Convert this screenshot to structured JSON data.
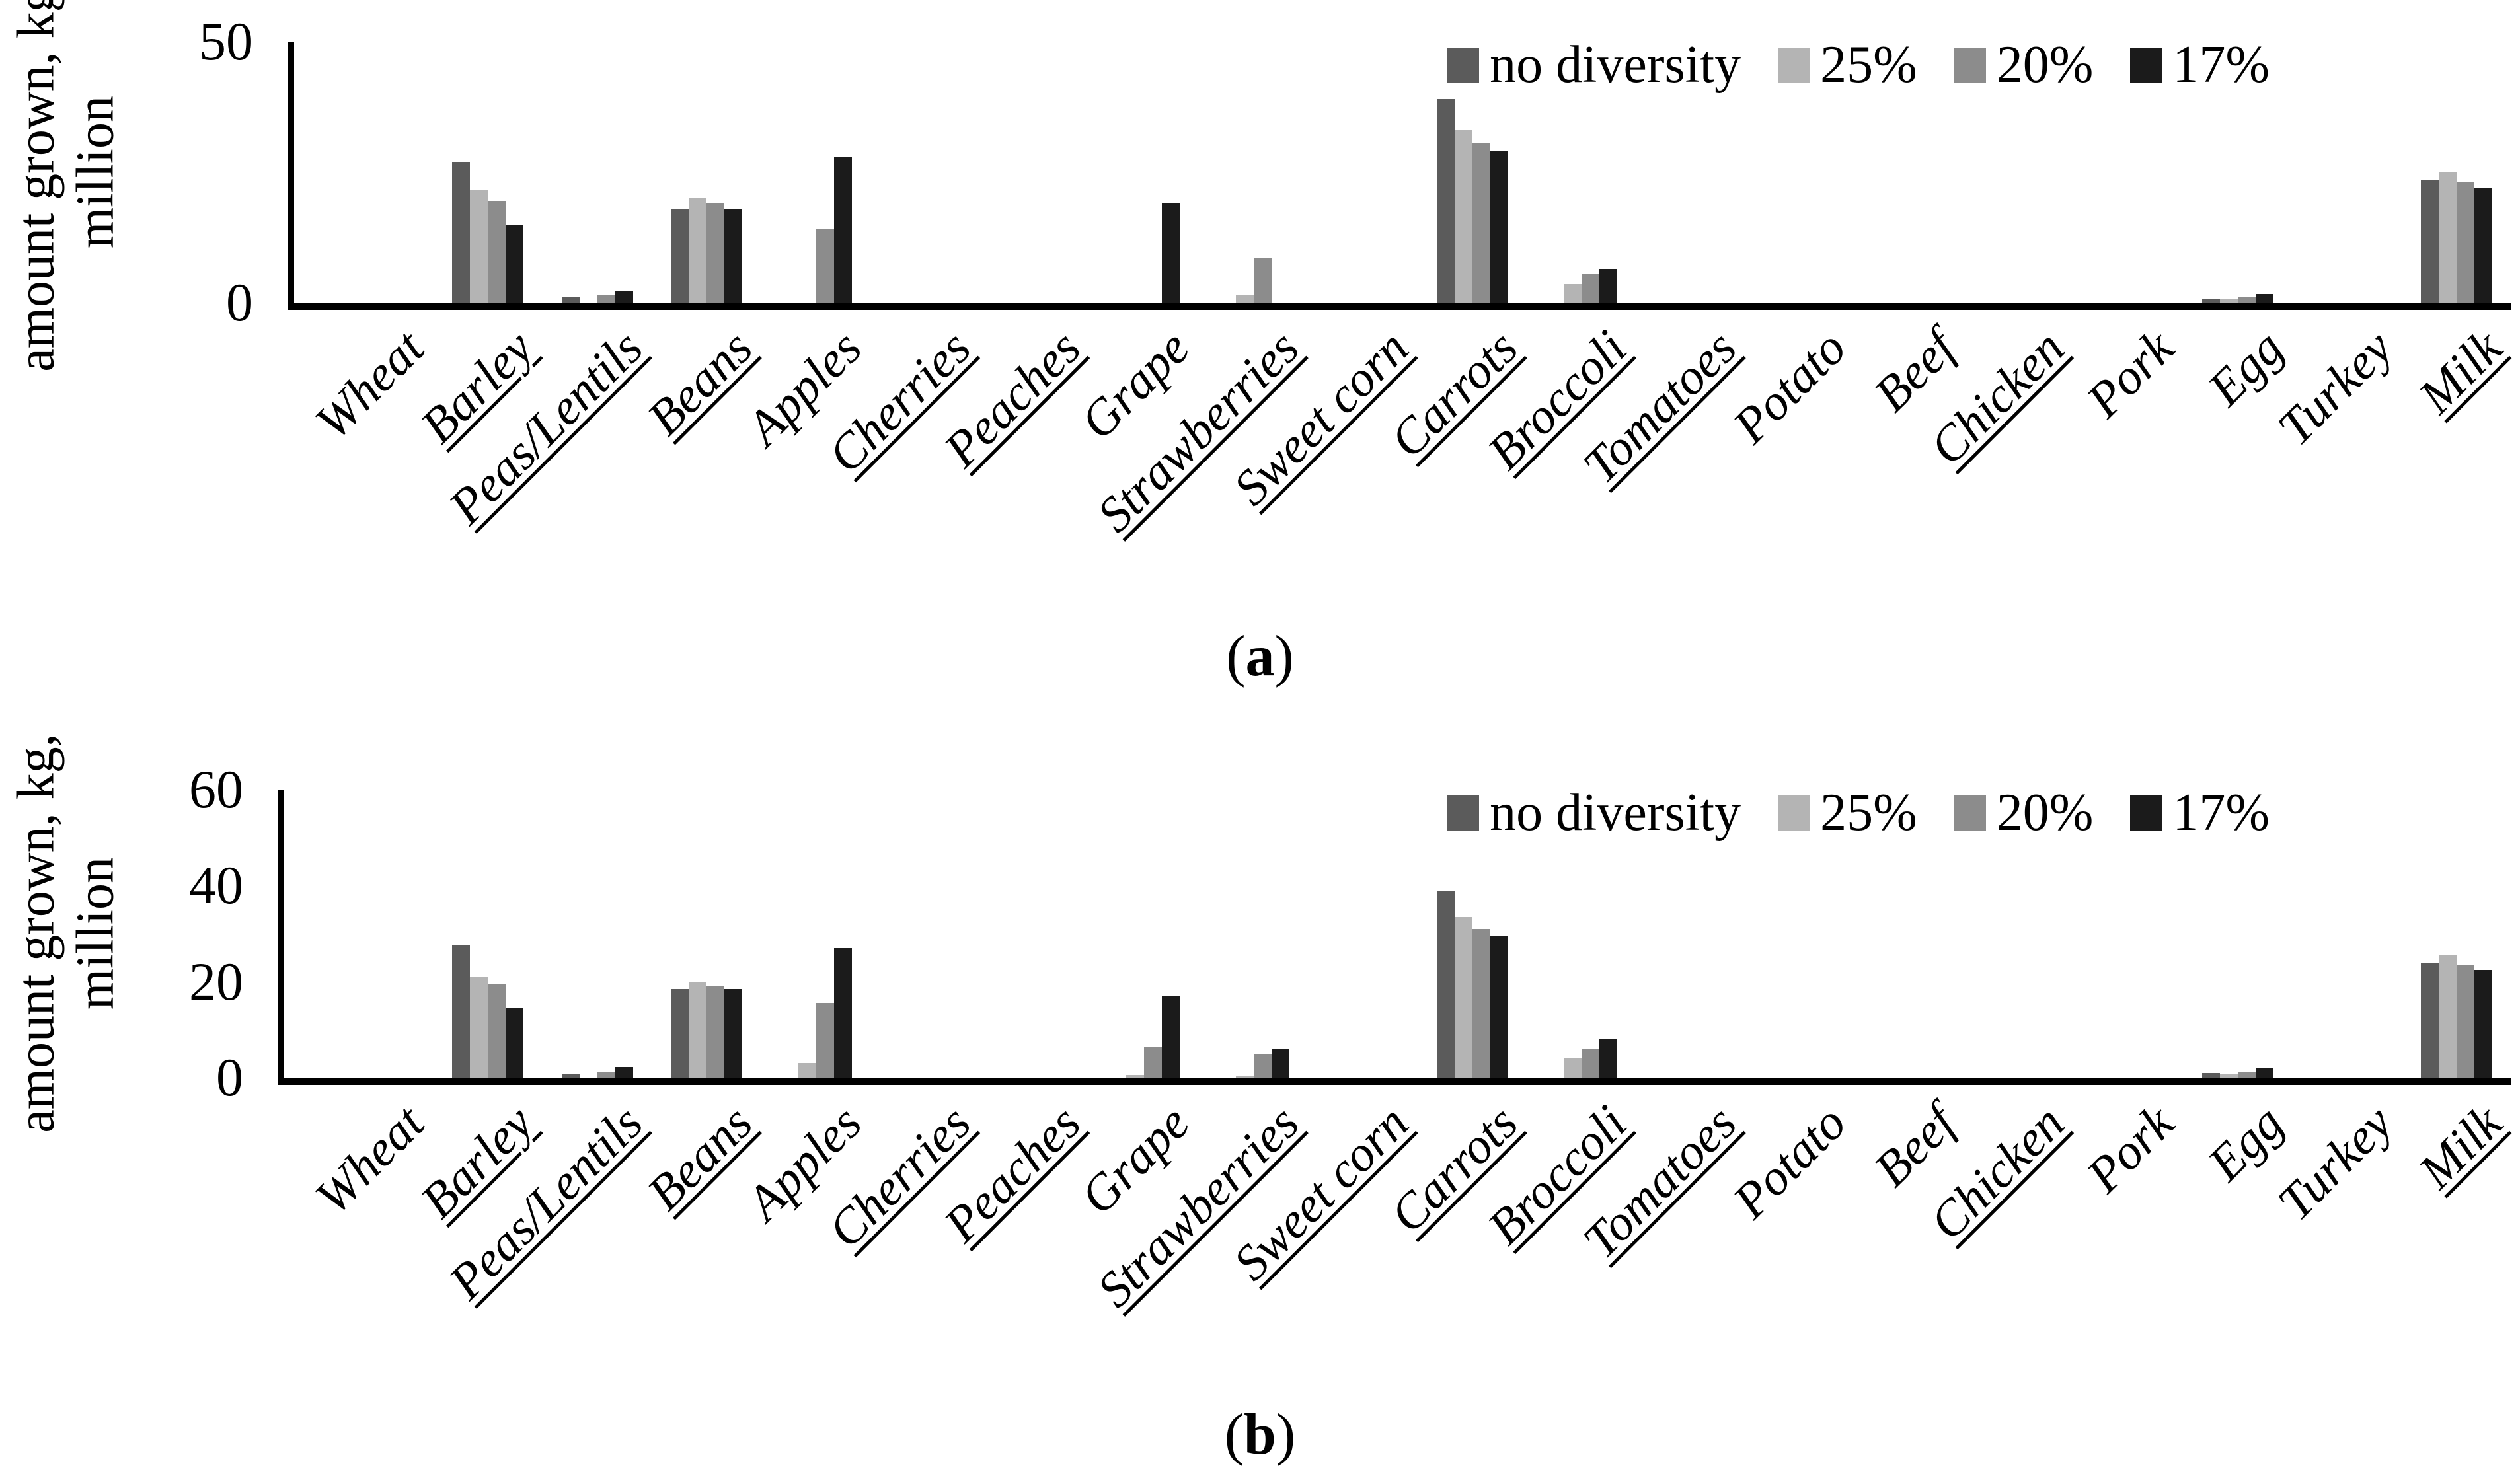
{
  "chart_data": [
    {
      "type": "bar",
      "panel": "a",
      "caption_open": "(",
      "caption_letter": "a",
      "caption_close": ")",
      "ylabel": "amount grown, kg, million",
      "ylabel_lines": [
        "amount grown, kg,",
        "million"
      ],
      "xlabel": "",
      "ylim": [
        0,
        50
      ],
      "yticks": [
        0,
        50
      ],
      "grid": false,
      "legend_position": "top-right",
      "xlabel_rotation_deg": 45,
      "categories": [
        "Wheat",
        "Barley",
        "Peas/Lentils",
        "Beans",
        "Apples",
        "Cherries",
        "Peaches",
        "Grape",
        "Strawberries",
        "Sweet corn",
        "Carrots",
        "Broccoli",
        "Tomatoes",
        "Potato",
        "Beef",
        "Chicken",
        "Pork",
        "Egg",
        "Turkey",
        "Milk"
      ],
      "underlined_labels": [
        "Barley",
        "Peas/Lentils",
        "Beans",
        "Cherries",
        "Peaches",
        "Strawberries",
        "Sweet corn",
        "Carrots",
        "Broccoli",
        "Tomatoes",
        "Chicken",
        "Milk"
      ],
      "series": [
        {
          "name": "no diversity",
          "color": "#5b5b5b",
          "values": [
            0,
            27,
            1,
            18,
            0,
            0,
            0,
            0,
            0,
            0,
            39,
            0,
            0,
            0,
            0,
            0,
            0,
            0.8,
            0,
            23.5
          ]
        },
        {
          "name": "25%",
          "color": "#b4b4b4",
          "values": [
            0,
            21.5,
            0,
            20,
            0,
            0,
            0,
            0,
            1.5,
            0,
            33,
            3.5,
            0,
            0,
            0,
            0,
            0,
            0.6,
            0,
            25
          ]
        },
        {
          "name": "20%",
          "color": "#8c8c8c",
          "values": [
            0,
            19.5,
            1.4,
            19,
            14,
            0,
            0,
            0,
            8.5,
            0,
            30.5,
            5.5,
            0,
            0,
            0,
            0,
            0,
            1,
            0,
            23
          ]
        },
        {
          "name": "17%",
          "color": "#1b1b1b",
          "values": [
            0,
            15,
            2.2,
            18,
            28,
            0,
            0,
            19,
            0,
            0,
            29,
            6.5,
            0,
            0,
            0,
            0,
            0,
            1.7,
            0,
            22
          ]
        }
      ]
    },
    {
      "type": "bar",
      "panel": "b",
      "caption_open": "(",
      "caption_letter": "b",
      "caption_close": ")",
      "ylabel": "amount grown, kg, million",
      "ylabel_lines": [
        "amount grown, kg,",
        "million"
      ],
      "xlabel": "",
      "ylim": [
        0,
        60
      ],
      "yticks": [
        0,
        20,
        40,
        60
      ],
      "grid": false,
      "legend_position": "top-right",
      "xlabel_rotation_deg": 45,
      "categories": [
        "Wheat",
        "Barley",
        "Peas/Lentils",
        "Beans",
        "Apples",
        "Cherries",
        "Peaches",
        "Grape",
        "Strawberries",
        "Sweet corn",
        "Carrots",
        "Broccoli",
        "Tomatoes",
        "Potato",
        "Beef",
        "Chicken",
        "Pork",
        "Egg",
        "Turkey",
        "Milk"
      ],
      "underlined_labels": [
        "Barley",
        "Peas/Lentils",
        "Beans",
        "Cherries",
        "Peaches",
        "Strawberries",
        "Sweet corn",
        "Carrots",
        "Broccoli",
        "Tomatoes",
        "Chicken",
        "Milk"
      ],
      "series": [
        {
          "name": "no diversity",
          "color": "#5b5b5b",
          "values": [
            0,
            27.5,
            0.8,
            18.5,
            0,
            0,
            0,
            0,
            0,
            0,
            39,
            0,
            0,
            0,
            0,
            0,
            0,
            1,
            0,
            24
          ]
        },
        {
          "name": "25%",
          "color": "#b4b4b4",
          "values": [
            0,
            21,
            0,
            20,
            3,
            0,
            0,
            0.5,
            0.3,
            0,
            33.5,
            4,
            0,
            0,
            0,
            0,
            0,
            0.8,
            0,
            25.5
          ]
        },
        {
          "name": "20%",
          "color": "#8c8c8c",
          "values": [
            0,
            19.5,
            1.2,
            19,
            15.5,
            0,
            0,
            6.3,
            5,
            0,
            31,
            6,
            0,
            0,
            0,
            0,
            0,
            1.2,
            0,
            23.5
          ]
        },
        {
          "name": "17%",
          "color": "#1b1b1b",
          "values": [
            0,
            14.5,
            2.2,
            18.5,
            27,
            0,
            0,
            17,
            6,
            0,
            29.5,
            8,
            0,
            0,
            0,
            0,
            0,
            2,
            0,
            22.5
          ]
        }
      ]
    }
  ]
}
